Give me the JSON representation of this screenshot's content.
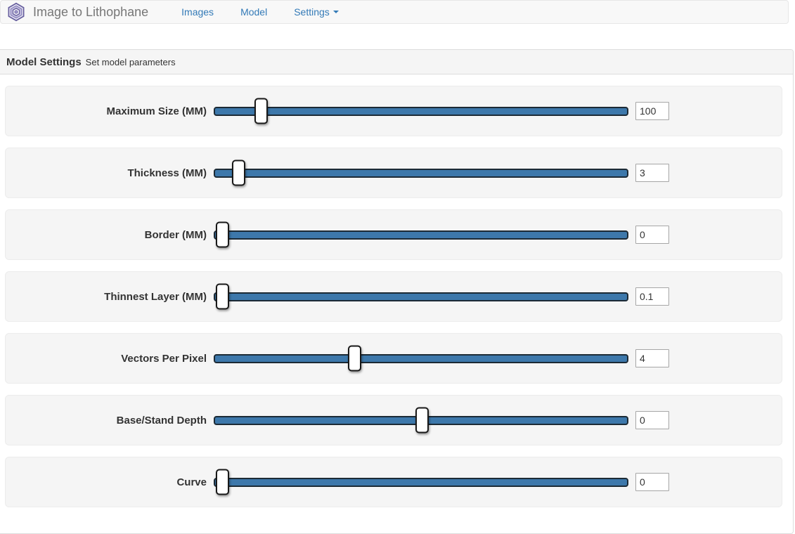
{
  "navbar": {
    "brand": "Image to Lithophane",
    "links": [
      {
        "label": "Images"
      },
      {
        "label": "Model"
      },
      {
        "label": "Settings",
        "has_caret": true
      }
    ]
  },
  "panel": {
    "title": "Model Settings",
    "subtitle": "Set model parameters"
  },
  "sliders": [
    {
      "label": "Maximum Size (MM)",
      "value": "100",
      "percent": 10.2
    },
    {
      "label": "Thickness (MM)",
      "value": "3",
      "percent": 4.5
    },
    {
      "label": "Border (MM)",
      "value": "0",
      "percent": 0.5
    },
    {
      "label": "Thinnest Layer (MM)",
      "value": "0.1",
      "percent": 0.5
    },
    {
      "label": "Vectors Per Pixel",
      "value": "4",
      "percent": 33.4
    },
    {
      "label": "Base/Stand Depth",
      "value": "0",
      "percent": 50.3
    },
    {
      "label": "Curve",
      "value": "0",
      "percent": 0.5
    }
  ],
  "colors": {
    "link_blue": "#337ab7",
    "track_blue": "#3d78ab",
    "track_border": "#1c2a35",
    "navbar_bg": "#f8f8f8",
    "navbar_border": "#e7e7e7",
    "band_bg": "#f5f5f5",
    "panel_border": "#dddddd",
    "logo_purple": "#675f9e"
  }
}
